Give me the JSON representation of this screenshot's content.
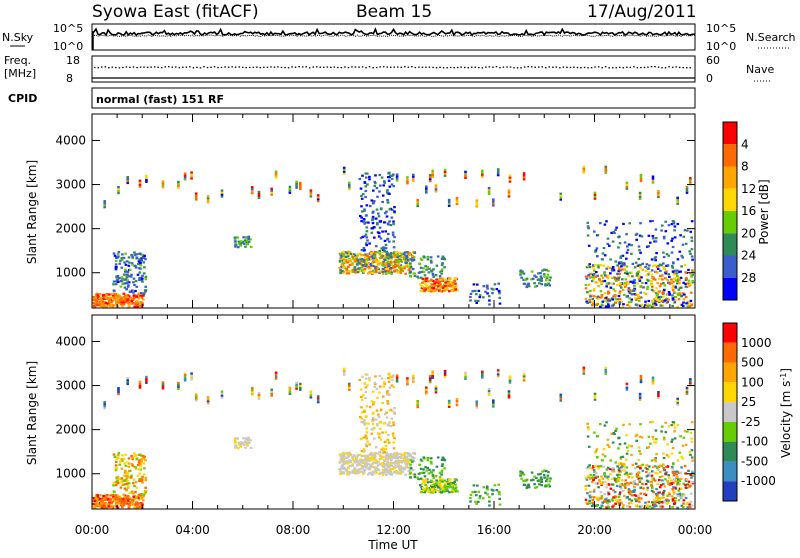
{
  "header": {
    "station": "Syowa East (fitACF)",
    "beam": "Beam 15",
    "date": "17/Aug/2011"
  },
  "top_panel": {
    "left_label": "N.Sky",
    "right_label": "N.Search",
    "left_ticks": [
      "10^5",
      "10^0"
    ],
    "right_ticks": [
      "10^5",
      "10^0"
    ]
  },
  "freq_panel": {
    "left_label_1": "Freq.",
    "left_label_2": "[MHz]",
    "right_label": "Nave",
    "left_ticks": [
      "18",
      "8"
    ],
    "right_ticks": [
      "60",
      "0"
    ]
  },
  "cpid": {
    "label": "CPID",
    "text": "normal (fast) 151 RF"
  },
  "chart_data": [
    {
      "type": "heatmap",
      "name": "power",
      "ylabel": "Slant Range [km]",
      "yticks": [
        "1000",
        "2000",
        "3000",
        "4000"
      ],
      "ytick_values": [
        1000,
        2000,
        3000,
        4000
      ],
      "ylim": [
        200,
        4600
      ],
      "xlim": [
        0,
        24
      ],
      "colorbar_label": "Power [dB]",
      "colorbar_ticks": [
        "4",
        "8",
        "12",
        "16",
        "20",
        "24",
        "28"
      ],
      "colorbar_colors": [
        "#0000ff",
        "#3a5fcd",
        "#2e8b57",
        "#66cd00",
        "#ffd700",
        "#ffa500",
        "#ff6a00",
        "#ff0000"
      ]
    },
    {
      "type": "heatmap",
      "name": "velocity",
      "ylabel": "Slant Range [km]",
      "yticks": [
        "1000",
        "2000",
        "3000",
        "4000"
      ],
      "ytick_values": [
        1000,
        2000,
        3000,
        4000
      ],
      "ylim": [
        200,
        4600
      ],
      "xlim": [
        0,
        24
      ],
      "xlabel": "Time UT",
      "xticks": [
        "00:00",
        "04:00",
        "08:00",
        "12:00",
        "16:00",
        "20:00",
        "00:00"
      ],
      "colorbar_label": "Velocity [m s^-1]",
      "colorbar_ticks": [
        "1000",
        "500",
        "100",
        "25",
        "-25",
        "-100",
        "-500",
        "-1000"
      ],
      "colorbar_colors": [
        "#2040c0",
        "#3a8fc0",
        "#2e8b57",
        "#66cd00",
        "#c8c8c8",
        "#ffd700",
        "#ffa500",
        "#ff6a00",
        "#ff0000"
      ]
    }
  ]
}
